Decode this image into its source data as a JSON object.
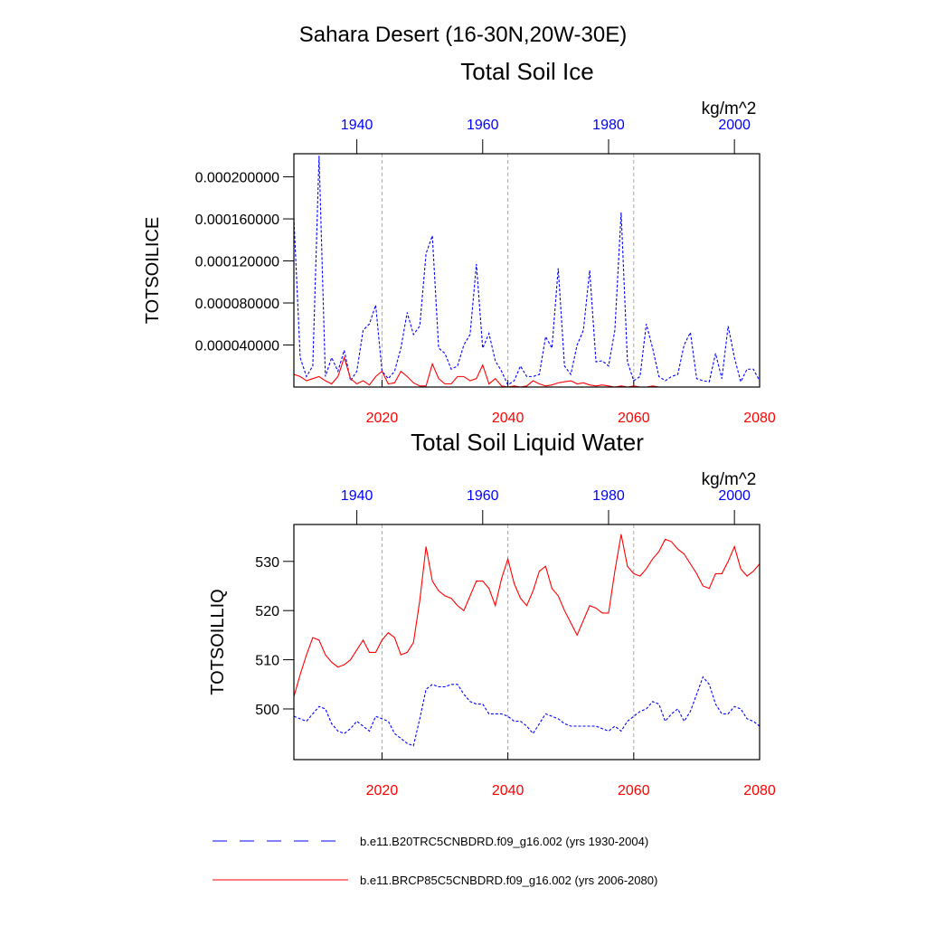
{
  "title": "Sahara Desert (16-30N,20W-30E)",
  "chart_data": [
    {
      "type": "line",
      "title": "Total Soil Ice",
      "units": "kg/m^2",
      "ylabel": "TOTSOILICE",
      "xlim": [
        2006,
        2080
      ],
      "xticks": [
        2020,
        2040,
        2060,
        2080
      ],
      "xtick_color": "#ff0000",
      "x2lim": [
        1930,
        2004
      ],
      "x2ticks": [
        1940,
        1960,
        1980,
        2000
      ],
      "x2tick_color": "#0000ff",
      "ylim": [
        0,
        0.000222
      ],
      "yticks": [
        {
          "value": 4e-05,
          "label": "0.000040000"
        },
        {
          "value": 8e-05,
          "label": "0.000080000"
        },
        {
          "value": 0.00012,
          "label": "0.000120000"
        },
        {
          "value": 0.00016,
          "label": "0.000160000"
        },
        {
          "value": 0.0002,
          "label": "0.000200000"
        }
      ],
      "grid": true,
      "series": [
        {
          "color": "#0000ff",
          "dash": true,
          "axis": "x2",
          "x": [
            1930,
            1931,
            1932,
            1933,
            1934,
            1935,
            1936,
            1937,
            1938,
            1939,
            1940,
            1941,
            1942,
            1943,
            1944,
            1945,
            1946,
            1947,
            1948,
            1949,
            1950,
            1951,
            1952,
            1953,
            1954,
            1955,
            1956,
            1957,
            1958,
            1959,
            1960,
            1961,
            1962,
            1963,
            1964,
            1965,
            1966,
            1967,
            1968,
            1969,
            1970,
            1971,
            1972,
            1973,
            1974,
            1975,
            1976,
            1977,
            1978,
            1979,
            1980,
            1981,
            1982,
            1983,
            1984,
            1985,
            1986,
            1987,
            1988,
            1989,
            1990,
            1991,
            1992,
            1993,
            1994,
            1995,
            1996,
            1997,
            1998,
            1999,
            2000,
            2001,
            2002,
            2003,
            2004
          ],
          "values": [
            0.000161,
            2.8e-05,
            1e-05,
            2e-05,
            0.00022,
            1e-05,
            2.8e-05,
            1.5e-05,
            3.5e-05,
            6e-06,
            1.5e-05,
            5.4e-05,
            6e-05,
            7.8e-05,
            1.5e-05,
            8e-06,
            1.5e-05,
            3.7e-05,
            7.1e-05,
            5e-05,
            5.8e-05,
            0.000127,
            0.000144,
            3.7e-05,
            3.2e-05,
            1.7e-05,
            2e-05,
            4e-05,
            5e-05,
            0.000117,
            3.7e-05,
            5.1e-05,
            2.5e-05,
            1.5e-05,
            2e-06,
            6e-06,
            2e-05,
            1e-05,
            1e-05,
            1.2e-05,
            4.8e-05,
            3.7e-05,
            0.000113,
            2e-05,
            1.2e-05,
            4e-05,
            5.4e-05,
            0.000111,
            2.4e-05,
            2.5e-05,
            2e-05,
            5.4e-05,
            0.000166,
            2.4e-05,
            6e-06,
            1e-05,
            6e-05,
            3.7e-05,
            1e-05,
            6e-06,
            1e-05,
            1.2e-05,
            4e-05,
            5.2e-05,
            8e-06,
            6e-06,
            5e-06,
            3.2e-05,
            8e-06,
            5.8e-05,
            2.8e-05,
            5e-06,
            1.7e-05,
            1.7e-05,
            6e-06
          ]
        },
        {
          "color": "#ff0000",
          "dash": false,
          "axis": "x",
          "x": [
            2006,
            2007,
            2008,
            2009,
            2010,
            2011,
            2012,
            2013,
            2014,
            2015,
            2016,
            2017,
            2018,
            2019,
            2020,
            2021,
            2022,
            2023,
            2024,
            2025,
            2026,
            2027,
            2028,
            2029,
            2030,
            2031,
            2032,
            2033,
            2034,
            2035,
            2036,
            2037,
            2038,
            2039,
            2040,
            2041,
            2042,
            2043,
            2044,
            2045,
            2046,
            2047,
            2048,
            2049,
            2050,
            2051,
            2052,
            2053,
            2054,
            2055,
            2056,
            2057,
            2058,
            2059,
            2060,
            2061,
            2062,
            2063,
            2064,
            2065,
            2066,
            2067,
            2068,
            2069,
            2070,
            2071,
            2072,
            2073,
            2074,
            2075,
            2076,
            2077,
            2078,
            2079,
            2080
          ],
          "values": [
            1.2e-05,
            1e-05,
            6e-06,
            8e-06,
            1e-05,
            6e-06,
            3e-06,
            1e-05,
            2.8e-05,
            8e-06,
            3e-06,
            6e-06,
            2e-06,
            1e-05,
            1.5e-05,
            3e-06,
            4e-06,
            1.5e-05,
            1e-05,
            4e-06,
            1e-06,
            1e-06,
            2.2e-05,
            8e-06,
            3e-06,
            3e-06,
            1e-05,
            1e-05,
            6e-06,
            8e-06,
            2.1e-05,
            3e-06,
            8e-06,
            1e-06,
            0,
            1e-06,
            0,
            1e-06,
            6e-06,
            3e-06,
            1e-06,
            2e-06,
            4e-06,
            5e-06,
            6e-06,
            3e-06,
            4e-06,
            2e-06,
            1e-06,
            2e-06,
            1e-06,
            0,
            1e-06,
            0,
            1e-06,
            0,
            0,
            1e-06,
            0,
            0,
            0,
            0,
            0,
            0,
            0,
            0,
            0,
            0,
            0,
            0,
            0,
            0,
            0,
            0,
            0
          ]
        }
      ]
    },
    {
      "type": "line",
      "title": "Total Soil Liquid Water",
      "units": "kg/m^2",
      "ylabel": "TOTSOILLIQ",
      "xlim": [
        2006,
        2080
      ],
      "xticks": [
        2020,
        2040,
        2060,
        2080
      ],
      "xtick_color": "#ff0000",
      "x2lim": [
        1930,
        2004
      ],
      "x2ticks": [
        1940,
        1960,
        1980,
        2000
      ],
      "x2tick_color": "#0000ff",
      "ylim": [
        489.7,
        537.5
      ],
      "yticks": [
        500,
        510,
        520,
        530
      ],
      "grid": true,
      "series": [
        {
          "name": "b.e11.B20TRC5CNBDRD.f09_g16.002 (yrs 1930-2004)",
          "color": "#0000ff",
          "dash": true,
          "axis": "x2",
          "x": [
            1930,
            1931,
            1932,
            1933,
            1934,
            1935,
            1936,
            1937,
            1938,
            1939,
            1940,
            1941,
            1942,
            1943,
            1944,
            1945,
            1946,
            1947,
            1948,
            1949,
            1950,
            1951,
            1952,
            1953,
            1954,
            1955,
            1956,
            1957,
            1958,
            1959,
            1960,
            1961,
            1962,
            1963,
            1964,
            1965,
            1966,
            1967,
            1968,
            1969,
            1970,
            1971,
            1972,
            1973,
            1974,
            1975,
            1976,
            1977,
            1978,
            1979,
            1980,
            1981,
            1982,
            1983,
            1984,
            1985,
            1986,
            1987,
            1988,
            1989,
            1990,
            1991,
            1992,
            1993,
            1994,
            1995,
            1996,
            1997,
            1998,
            1999,
            2000,
            2001,
            2002,
            2003,
            2004
          ],
          "values": [
            498.5,
            498,
            497.5,
            499,
            500.5,
            500,
            497,
            495.5,
            495,
            496,
            497.5,
            496.5,
            495.5,
            498.5,
            498,
            497.5,
            495,
            494,
            493,
            492.5,
            498,
            504,
            505,
            504.5,
            504.5,
            505,
            505,
            503,
            501.5,
            501,
            501,
            499,
            499,
            499,
            498.5,
            497.5,
            497.5,
            496.5,
            495,
            497,
            499,
            498.5,
            498,
            497,
            496.5,
            496.5,
            496.5,
            496.5,
            496.5,
            496,
            495.5,
            496.5,
            495.5,
            497.5,
            498.5,
            499.5,
            500,
            501.5,
            501,
            497.5,
            499,
            500,
            497.5,
            499.5,
            503,
            506.5,
            505,
            501,
            499,
            499,
            500.5,
            500,
            498,
            497.5,
            496.5
          ]
        },
        {
          "name": "b.e11.BRCP85C5CNBDRD.f09_g16.002 (yrs 2006-2080)",
          "color": "#ff0000",
          "dash": false,
          "axis": "x",
          "x": [
            2006,
            2007,
            2008,
            2009,
            2010,
            2011,
            2012,
            2013,
            2014,
            2015,
            2016,
            2017,
            2018,
            2019,
            2020,
            2021,
            2022,
            2023,
            2024,
            2025,
            2026,
            2027,
            2028,
            2029,
            2030,
            2031,
            2032,
            2033,
            2034,
            2035,
            2036,
            2037,
            2038,
            2039,
            2040,
            2041,
            2042,
            2043,
            2044,
            2045,
            2046,
            2047,
            2048,
            2049,
            2050,
            2051,
            2052,
            2053,
            2054,
            2055,
            2056,
            2057,
            2058,
            2059,
            2060,
            2061,
            2062,
            2063,
            2064,
            2065,
            2066,
            2067,
            2068,
            2069,
            2070,
            2071,
            2072,
            2073,
            2074,
            2075,
            2076,
            2077,
            2078,
            2079,
            2080
          ],
          "values": [
            502.5,
            507,
            511,
            514.5,
            514,
            511,
            509.5,
            508.5,
            509,
            510,
            512,
            514,
            511.5,
            511.5,
            514,
            515.5,
            514.5,
            511,
            511.5,
            513.5,
            522,
            533,
            526,
            524,
            523,
            522.5,
            521,
            520,
            523,
            526,
            526,
            524.5,
            521,
            526.5,
            530.5,
            525.5,
            522.5,
            521,
            524,
            528,
            529,
            524.5,
            523,
            520,
            517.5,
            515,
            518,
            521,
            520.5,
            519.5,
            519.5,
            528,
            535.5,
            529,
            527.5,
            527,
            528.5,
            530.5,
            532,
            534.5,
            534,
            532.5,
            531.5,
            529.5,
            527.5,
            525,
            524.5,
            527.5,
            527.5,
            530,
            533,
            528.5,
            527,
            528,
            529.5
          ]
        }
      ]
    }
  ]
}
